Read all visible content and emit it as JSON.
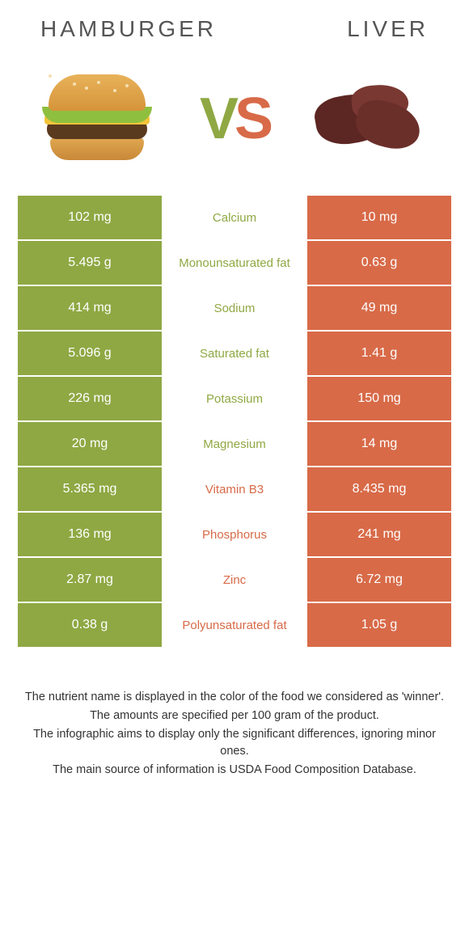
{
  "colors": {
    "green": "#8fa843",
    "orange": "#d86a48",
    "text_dark": "#333333",
    "title_gray": "#555555",
    "white": "#ffffff"
  },
  "header": {
    "left_title": "Hamburger",
    "right_title": "Liver"
  },
  "vs": {
    "v": "V",
    "s": "S"
  },
  "table": {
    "rows": [
      {
        "left": "102 mg",
        "label": "Calcium",
        "right": "10 mg",
        "winner": "green"
      },
      {
        "left": "5.495 g",
        "label": "Monounsaturated fat",
        "right": "0.63 g",
        "winner": "green"
      },
      {
        "left": "414 mg",
        "label": "Sodium",
        "right": "49 mg",
        "winner": "green"
      },
      {
        "left": "5.096 g",
        "label": "Saturated fat",
        "right": "1.41 g",
        "winner": "green"
      },
      {
        "left": "226 mg",
        "label": "Potassium",
        "right": "150 mg",
        "winner": "green"
      },
      {
        "left": "20 mg",
        "label": "Magnesium",
        "right": "14 mg",
        "winner": "green"
      },
      {
        "left": "5.365 mg",
        "label": "Vitamin B3",
        "right": "8.435 mg",
        "winner": "orange"
      },
      {
        "left": "136 mg",
        "label": "Phosphorus",
        "right": "241 mg",
        "winner": "orange"
      },
      {
        "left": "2.87 mg",
        "label": "Zinc",
        "right": "6.72 mg",
        "winner": "orange"
      },
      {
        "left": "0.38 g",
        "label": "Polyunsaturated fat",
        "right": "1.05 g",
        "winner": "orange"
      }
    ]
  },
  "footer": {
    "line1": "The nutrient name is displayed in the color of the food we considered as 'winner'.",
    "line2": "The amounts are specified per 100 gram of the product.",
    "line3": "The infographic aims to display only the significant differences, ignoring minor ones.",
    "line4": "The main source of information is USDA Food Composition Database."
  }
}
